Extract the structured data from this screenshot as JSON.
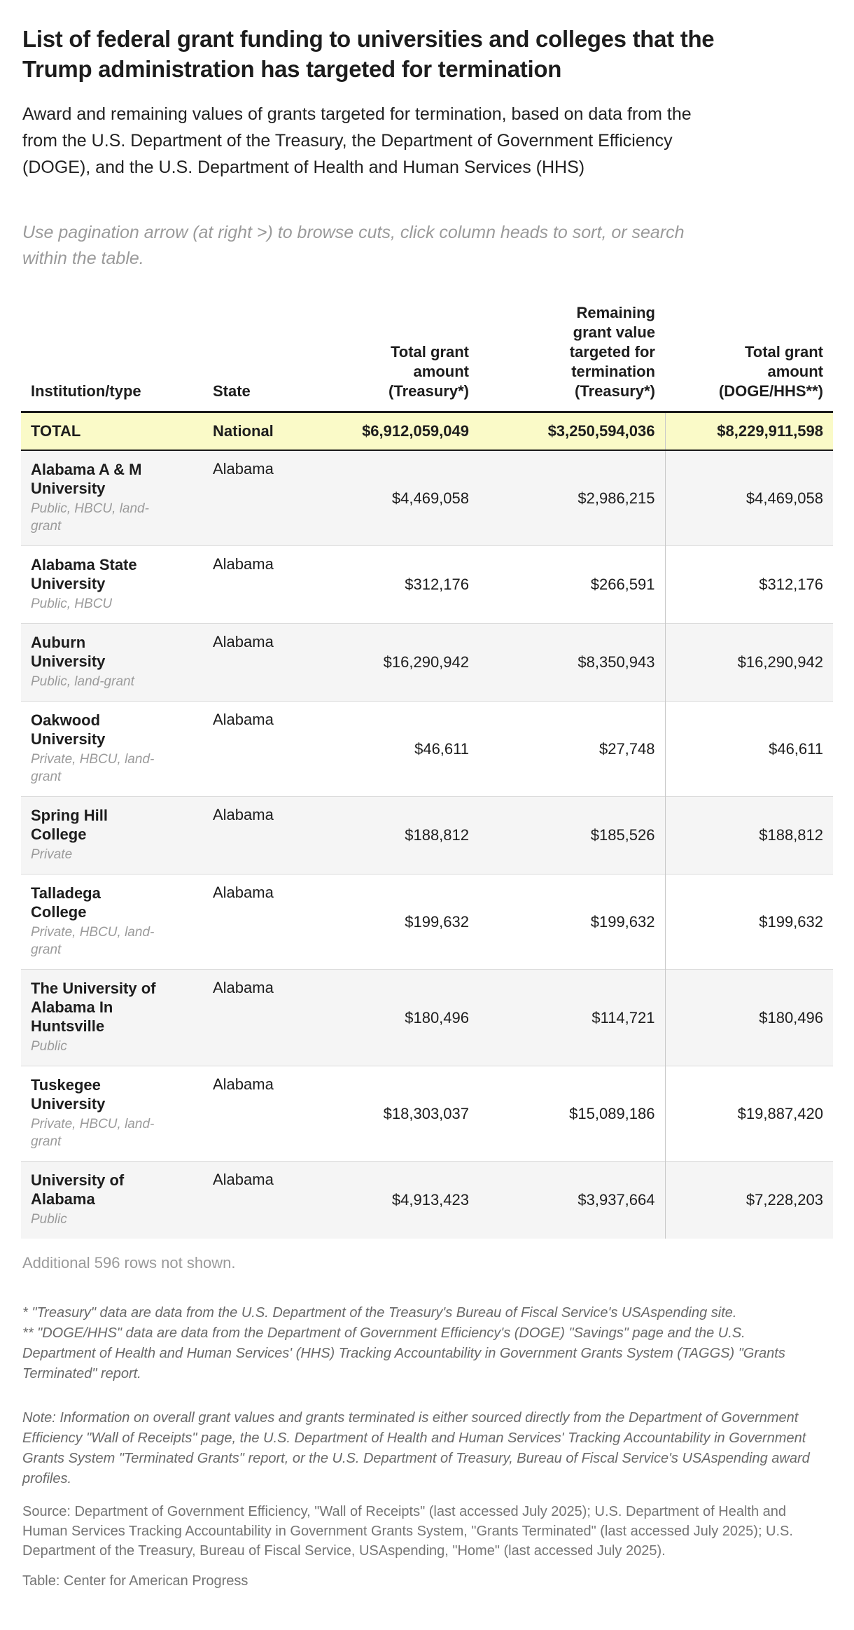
{
  "intro": {
    "instructions": "Use pagination arrow (at right >) to browse cuts, click column heads to sort, or search within the table."
  },
  "chart_data": {
    "type": "table",
    "title": "List of federal grant funding to universities and colleges that the Trump administration has targeted for termination",
    "subtitle": "Award and remaining values of grants targeted for termination, based on data from the from the U.S. Department of the Treasury, the Department of Government Efficiency (DOGE), and the U.S. Department of Health and Human Services (HHS)",
    "columns": [
      {
        "id": "institution",
        "label": "Institution/type",
        "align": "left",
        "sortable": true
      },
      {
        "id": "state",
        "label": "State",
        "align": "left",
        "sortable": true
      },
      {
        "id": "treasury_total",
        "label": "Total grant\namount\n(Treasury*)",
        "align": "right",
        "sortable": true
      },
      {
        "id": "remaining_value",
        "label": "Remaining\ngrant value\ntargeted for\ntermination\n(Treasury*)",
        "align": "right",
        "sortable": true
      },
      {
        "id": "doge_hhs_total",
        "label": "Total grant\namount\n(DOGE/HHS**)",
        "align": "right",
        "sortable": true
      }
    ],
    "total_row": {
      "institution": "TOTAL",
      "state": "National",
      "treasury_total": "$6,912,059,049",
      "remaining_value": "$3,250,594,036",
      "doge_hhs_total": "$8,229,911,598"
    },
    "rows": [
      {
        "institution": "Alabama A & M University",
        "type": "Public, HBCU, land-grant",
        "state": "Alabama",
        "treasury_total": "$4,469,058",
        "remaining_value": "$2,986,215",
        "doge_hhs_total": "$4,469,058"
      },
      {
        "institution": "Alabama State University",
        "type": "Public, HBCU",
        "state": "Alabama",
        "treasury_total": "$312,176",
        "remaining_value": "$266,591",
        "doge_hhs_total": "$312,176"
      },
      {
        "institution": "Auburn University",
        "type": "Public, land-grant",
        "state": "Alabama",
        "treasury_total": "$16,290,942",
        "remaining_value": "$8,350,943",
        "doge_hhs_total": "$16,290,942"
      },
      {
        "institution": "Oakwood University",
        "type": "Private, HBCU, land-grant",
        "state": "Alabama",
        "treasury_total": "$46,611",
        "remaining_value": "$27,748",
        "doge_hhs_total": "$46,611"
      },
      {
        "institution": "Spring Hill College",
        "type": "Private",
        "state": "Alabama",
        "treasury_total": "$188,812",
        "remaining_value": "$185,526",
        "doge_hhs_total": "$188,812"
      },
      {
        "institution": "Talladega College",
        "type": "Private, HBCU, land-grant",
        "state": "Alabama",
        "treasury_total": "$199,632",
        "remaining_value": "$199,632",
        "doge_hhs_total": "$199,632"
      },
      {
        "institution": "The University of Alabama In Huntsville",
        "type": "Public",
        "state": "Alabama",
        "treasury_total": "$180,496",
        "remaining_value": "$114,721",
        "doge_hhs_total": "$180,496"
      },
      {
        "institution": "Tuskegee University",
        "type": "Private, HBCU, land-grant",
        "state": "Alabama",
        "treasury_total": "$18,303,037",
        "remaining_value": "$15,089,186",
        "doge_hhs_total": "$19,887,420"
      },
      {
        "institution": "University of Alabama",
        "type": "Public",
        "state": "Alabama",
        "treasury_total": "$4,913,423",
        "remaining_value": "$3,937,664",
        "doge_hhs_total": "$7,228,203"
      }
    ],
    "additional_rows_note": "Additional 596 rows not shown.",
    "layout": {
      "grid": "off",
      "legend": "none",
      "striped_rows": true,
      "highlight_total_row": true
    }
  },
  "footer": {
    "footnote_treasury": "* \"Treasury\" data are data from the U.S. Department of the Treasury's Bureau of Fiscal Service's USAspending site.",
    "footnote_doge_hhs": "** \"DOGE/HHS\" data are data from the Department of Government Efficiency's (DOGE) \"Savings\" page and the U.S. Department of Health and Human Services' (HHS) Tracking Accountability in Government Grants System (TAGGS) \"Grants Terminated\" report.",
    "note": "Note: Information on overall grant values and grants terminated is either sourced directly from the Department of Government Efficiency \"Wall of Receipts\" page, the U.S. Department of Health and Human Services' Tracking Accountability in Government Grants System \"Terminated Grants\" report, or the U.S. Department of Treasury, Bureau of Fiscal Service's USAspending award profiles.",
    "source": "Source: Department of Government Efficiency, \"Wall of Receipts\" (last accessed July 2025); U.S. Department of Health and Human Services Tracking Accountability in Government Grants System, \"Grants Terminated\" (last accessed July 2025); U.S. Department of the Treasury, Bureau of Fiscal Service, USAspending, \"Home\" (last accessed July 2025).",
    "credit": "Table: Center for American Progress"
  },
  "colors": {
    "total_row_bg": "#FAFAC8",
    "alt_row_bg": "#F5F5F5",
    "header_rule": "#1A1A1A",
    "row_separator": "#DCDCDC",
    "column_divider": "#C9C9C9",
    "muted_text": "#9A9A9A",
    "footnote_text": "#696969",
    "body_text": "#1D1D1D"
  }
}
